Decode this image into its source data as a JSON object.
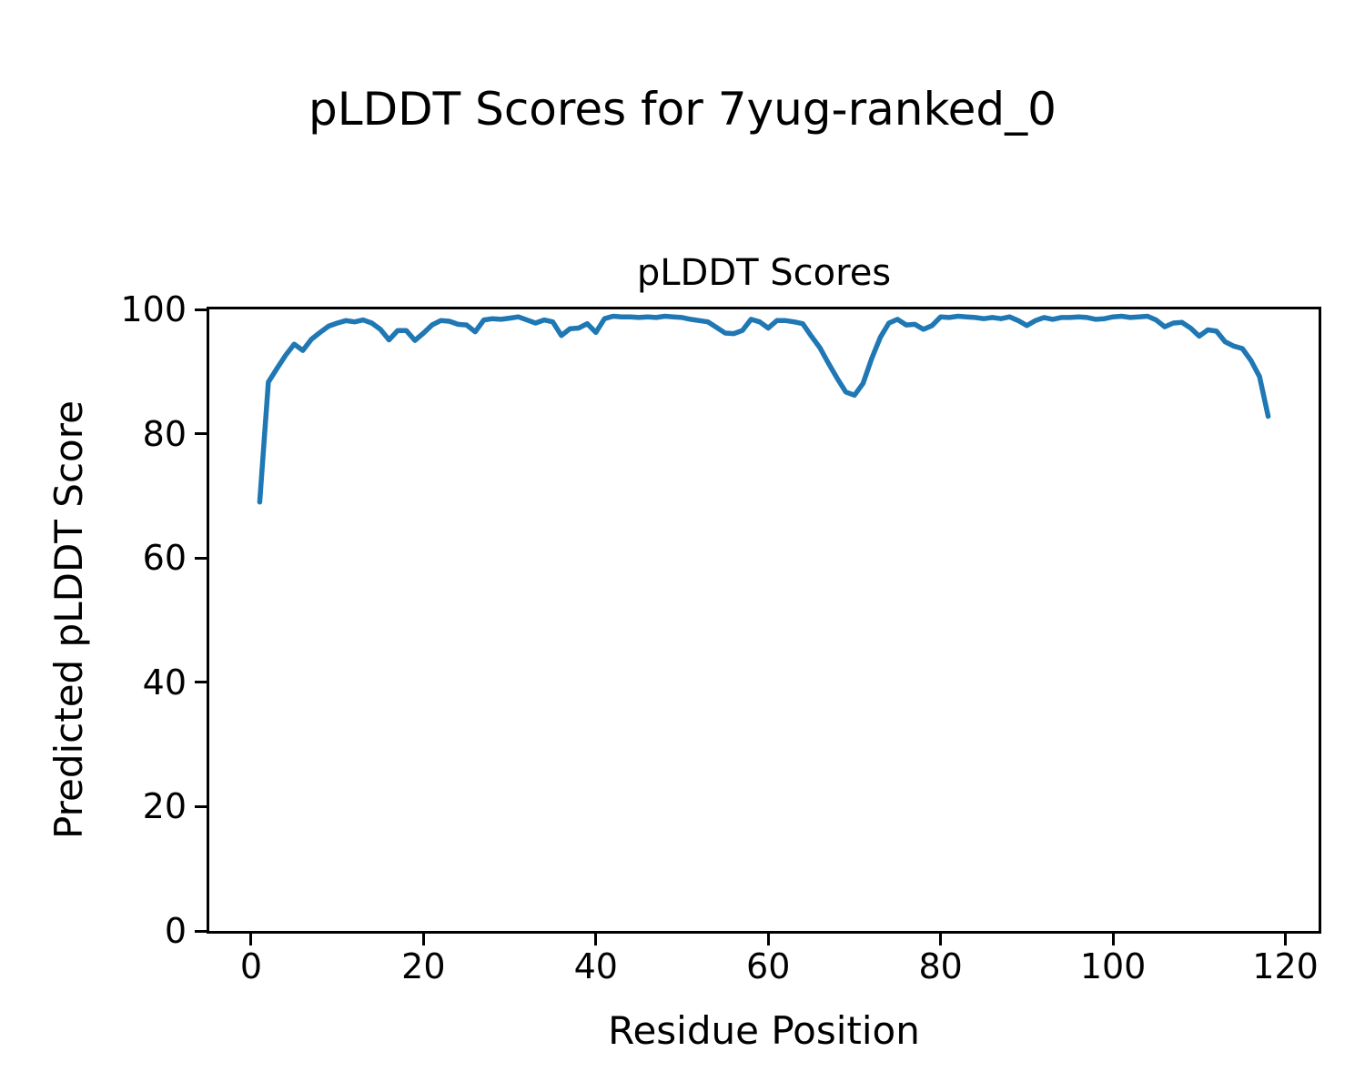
{
  "figure": {
    "suptitle": "pLDDT Scores for 7yug-ranked_0",
    "background_color": "#ffffff",
    "text_color": "#000000"
  },
  "chart_data": {
    "type": "line",
    "title": "pLDDT Scores",
    "xlabel": "Residue Position",
    "ylabel": "Predicted pLDDT Score",
    "xlim": [
      -4.85,
      123.85
    ],
    "ylim": [
      0,
      100
    ],
    "xticks": [
      0,
      20,
      40,
      60,
      80,
      100,
      120
    ],
    "yticks": [
      0,
      20,
      40,
      60,
      80,
      100
    ],
    "grid": false,
    "legend_position": "none",
    "line_color": "#1f77b4",
    "line_width": 5.5,
    "spine_color": "#000000",
    "series": [
      {
        "name": "pLDDT",
        "x": [
          1,
          2,
          3,
          4,
          5,
          6,
          7,
          8,
          9,
          10,
          11,
          12,
          13,
          14,
          15,
          16,
          17,
          18,
          19,
          20,
          21,
          22,
          23,
          24,
          25,
          26,
          27,
          28,
          29,
          30,
          31,
          32,
          33,
          34,
          35,
          36,
          37,
          38,
          39,
          40,
          41,
          42,
          43,
          44,
          45,
          46,
          47,
          48,
          49,
          50,
          51,
          52,
          53,
          54,
          55,
          56,
          57,
          58,
          59,
          60,
          61,
          62,
          63,
          64,
          65,
          66,
          67,
          68,
          69,
          70,
          71,
          72,
          73,
          74,
          75,
          76,
          77,
          78,
          79,
          80,
          81,
          82,
          83,
          84,
          85,
          86,
          87,
          88,
          89,
          90,
          91,
          92,
          93,
          94,
          95,
          96,
          97,
          98,
          99,
          100,
          101,
          102,
          103,
          104,
          105,
          106,
          107,
          108,
          109,
          110,
          111,
          112,
          113,
          114,
          115,
          116,
          117,
          118
        ],
        "y": [
          69.0,
          88.3,
          90.5,
          92.6,
          94.4,
          93.4,
          95.2,
          96.3,
          97.3,
          97.8,
          98.2,
          98.0,
          98.3,
          97.8,
          96.8,
          95.1,
          96.6,
          96.6,
          95.0,
          96.2,
          97.5,
          98.2,
          98.1,
          97.6,
          97.5,
          96.4,
          98.3,
          98.5,
          98.4,
          98.6,
          98.8,
          98.3,
          97.8,
          98.3,
          98.0,
          95.8,
          96.9,
          97.0,
          97.7,
          96.3,
          98.5,
          98.9,
          98.8,
          98.8,
          98.7,
          98.8,
          98.7,
          98.9,
          98.8,
          98.7,
          98.4,
          98.2,
          98.0,
          97.1,
          96.2,
          96.1,
          96.6,
          98.4,
          98.0,
          97.0,
          98.2,
          98.2,
          98.0,
          97.7,
          95.7,
          93.8,
          91.3,
          88.9,
          86.7,
          86.2,
          88.1,
          92.1,
          95.5,
          97.8,
          98.4,
          97.5,
          97.6,
          96.8,
          97.4,
          98.8,
          98.7,
          98.9,
          98.8,
          98.7,
          98.5,
          98.7,
          98.5,
          98.8,
          98.2,
          97.4,
          98.2,
          98.7,
          98.4,
          98.7,
          98.7,
          98.8,
          98.7,
          98.4,
          98.5,
          98.8,
          98.9,
          98.7,
          98.8,
          98.9,
          98.3,
          97.2,
          97.8,
          97.9,
          97.0,
          95.7,
          96.7,
          96.5,
          94.8,
          94.1,
          93.7,
          91.8,
          89.2,
          82.8
        ]
      }
    ]
  }
}
